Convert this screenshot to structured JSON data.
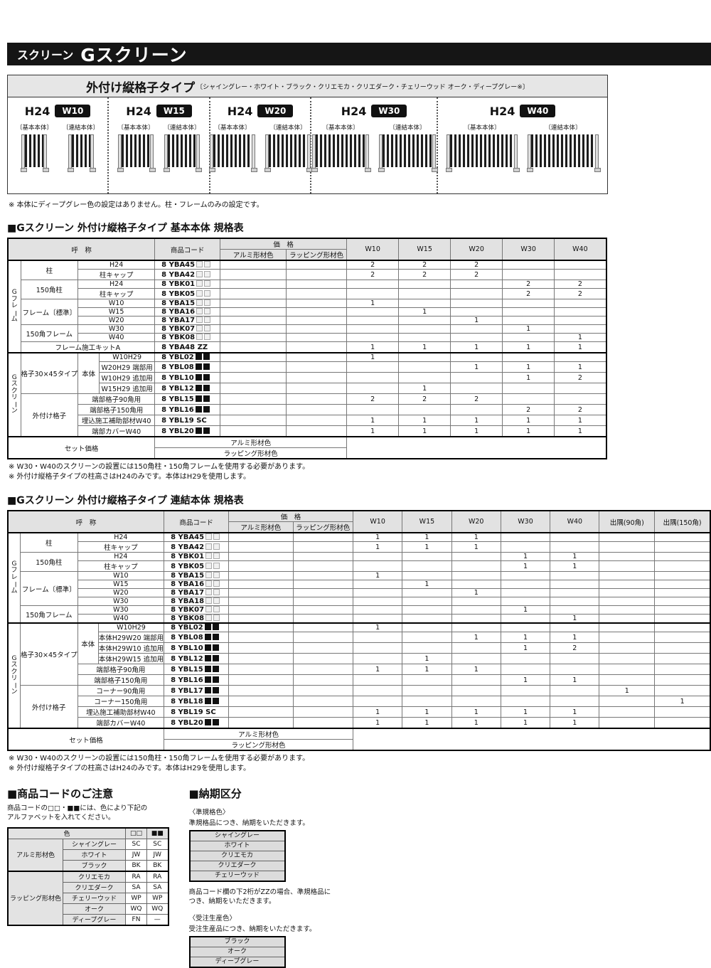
{
  "header": {
    "small": "スクリーン",
    "large": "Gスクリーン"
  },
  "product_box": {
    "title": "外付け縦格子タイプ",
    "subtitle": "〔シャイングレー・ホワイト・ブラック・クリエモカ・クリエダーク・チェリーウッド オーク・ディープグレー※〕",
    "unit_labels": [
      "〔基本本体〕",
      "〔連結本体〕"
    ],
    "panels": [
      {
        "h": "H24",
        "w": "W10"
      },
      {
        "h": "H24",
        "w": "W15"
      },
      {
        "h": "H24",
        "w": "W20"
      },
      {
        "h": "H24",
        "w": "W30"
      },
      {
        "h": "H24",
        "w": "W40"
      }
    ],
    "note": "※ 本体にディープグレー色の設定はありません。柱・フレームのみの設定です。"
  },
  "spec_tables": [
    {
      "title": "■Gスクリーン 外付け縦格子タイプ 基本本体 規格表",
      "headers": {
        "name": "呼　称",
        "code": "商品コード",
        "price": "価　格",
        "price_sub": [
          "アルミ形材色",
          "ラッピング形材色"
        ],
        "cols": [
          "W10",
          "W15",
          "W20",
          "W30",
          "W40"
        ]
      },
      "group1": [
        {
          "cells": [
            {
              "t": "Gフレーム",
              "rs": 10,
              "v": true
            },
            {
              "t": "柱",
              "rs": 2
            },
            {
              "t": "H24",
              "cs": 2
            }
          ],
          "code": "8 YBA45",
          "suffix": "□□",
          "qty": [
            "2",
            "2",
            "2",
            "",
            ""
          ]
        },
        {
          "cells": [
            {
              "t": "柱キャップ",
              "cs": 2
            }
          ],
          "code": "8 YBA42",
          "suffix": "□□",
          "qty": [
            "2",
            "2",
            "2",
            "",
            ""
          ]
        },
        {
          "cells": [
            {
              "t": "150角柱",
              "rs": 2
            },
            {
              "t": "H24",
              "cs": 2
            }
          ],
          "code": "8 YBK01",
          "suffix": "□□",
          "qty": [
            "",
            "",
            "",
            "2",
            "2"
          ]
        },
        {
          "cells": [
            {
              "t": "柱キャップ",
              "cs": 2
            }
          ],
          "code": "8 YBK05",
          "suffix": "□□",
          "qty": [
            "",
            "",
            "",
            "2",
            "2"
          ]
        },
        {
          "cells": [
            {
              "t": "フレーム〔標準〕",
              "rs": 3
            },
            {
              "t": "W10",
              "cs": 2
            }
          ],
          "code": "8 YBA15",
          "suffix": "□□",
          "qty": [
            "1",
            "",
            "",
            "",
            ""
          ]
        },
        {
          "cells": [
            {
              "t": "W15",
              "cs": 2
            }
          ],
          "code": "8 YBA16",
          "suffix": "□□",
          "qty": [
            "",
            "1",
            "",
            "",
            ""
          ]
        },
        {
          "cells": [
            {
              "t": "W20",
              "cs": 2
            }
          ],
          "code": "8 YBA17",
          "suffix": "□□",
          "qty": [
            "",
            "",
            "1",
            "",
            ""
          ]
        },
        {
          "cells": [
            {
              "t": "150角フレーム",
              "rs": 2
            },
            {
              "t": "W30",
              "cs": 2
            }
          ],
          "code": "8 YBK07",
          "suffix": "□□",
          "qty": [
            "",
            "",
            "",
            "1",
            ""
          ]
        },
        {
          "cells": [
            {
              "t": "W40",
              "cs": 2
            }
          ],
          "code": "8 YBK08",
          "suffix": "□□",
          "qty": [
            "",
            "",
            "",
            "",
            "1"
          ]
        },
        {
          "cells": [
            {
              "t": "フレーム施工キットA",
              "cs": 3
            }
          ],
          "code": "8 YBA48 ZZ",
          "suffix": "",
          "qty": [
            "1",
            "1",
            "1",
            "1",
            "1"
          ]
        }
      ],
      "group2": [
        {
          "cells": [
            {
              "t": "Gスクリーン",
              "rs": 8,
              "v": true
            },
            {
              "t": "格子30×45タイプ",
              "rs": 4
            },
            {
              "t": "本体",
              "rs": 4
            },
            {
              "t": "W10H29"
            }
          ],
          "code": "8 YBL02",
          "suffix": "■■",
          "qty": [
            "1",
            "",
            "",
            "",
            ""
          ]
        },
        {
          "cells": [
            {
              "t": "W20H29 端部用"
            }
          ],
          "code": "8 YBL08",
          "suffix": "■■",
          "qty": [
            "",
            "",
            "1",
            "1",
            "1"
          ]
        },
        {
          "cells": [
            {
              "t": "W10H29 追加用"
            }
          ],
          "code": "8 YBL10",
          "suffix": "■■",
          "qty": [
            "",
            "",
            "",
            "1",
            "2"
          ]
        },
        {
          "cells": [
            {
              "t": "W15H29 追加用"
            }
          ],
          "code": "8 YBL12",
          "suffix": "■■",
          "qty": [
            "",
            "1",
            "",
            "",
            ""
          ]
        },
        {
          "cells": [
            {
              "t": "外付け格子",
              "rs": 4
            },
            {
              "t": "端部格子90角用",
              "cs": 2
            }
          ],
          "code": "8 YBL15",
          "suffix": "■■",
          "qty": [
            "2",
            "2",
            "2",
            "",
            ""
          ]
        },
        {
          "cells": [
            {
              "t": "端部格子150角用",
              "cs": 2
            }
          ],
          "code": "8 YBL16",
          "suffix": "■■",
          "qty": [
            "",
            "",
            "",
            "2",
            "2"
          ]
        },
        {
          "cells": [
            {
              "t": "埋込施工補助部材W40",
              "cs": 2
            }
          ],
          "code": "8 YBL19 SC",
          "suffix": "",
          "qty": [
            "1",
            "1",
            "1",
            "1",
            "1"
          ]
        },
        {
          "cells": [
            {
              "t": "端部カバーW40",
              "cs": 2
            }
          ],
          "code": "8 YBL20",
          "suffix": "■■",
          "qty": [
            "1",
            "1",
            "1",
            "1",
            "1"
          ]
        }
      ],
      "set_price": {
        "label": "セット価格",
        "subs": [
          "アルミ形材色",
          "ラッピング形材色"
        ]
      },
      "notes": [
        "※ W30・W40のスクリーンの設置には150角柱・150角フレームを使用する必要があります。",
        "※ 外付け縦格子タイプの柱高さはH24のみです。本体はH29を使用します。"
      ]
    },
    {
      "title": "■Gスクリーン 外付け縦格子タイプ 連結本体 規格表",
      "headers": {
        "name": "呼　称",
        "code": "商品コード",
        "price": "価　格",
        "price_sub": [
          "アルミ形材色",
          "ラッピング形材色"
        ],
        "cols": [
          "W10",
          "W15",
          "W20",
          "W30",
          "W40",
          "出隅(90角)",
          "出隅(150角)"
        ]
      },
      "group1": [
        {
          "cells": [
            {
              "t": "Gフレーム",
              "rs": 10,
              "v": true
            },
            {
              "t": "柱",
              "rs": 2
            },
            {
              "t": "H24",
              "cs": 2
            }
          ],
          "code": "8 YBA45",
          "suffix": "□□",
          "qty": [
            "1",
            "1",
            "1",
            "",
            "",
            "",
            ""
          ]
        },
        {
          "cells": [
            {
              "t": "柱キャップ",
              "cs": 2
            }
          ],
          "code": "8 YBA42",
          "suffix": "□□",
          "qty": [
            "1",
            "1",
            "1",
            "",
            "",
            "",
            ""
          ]
        },
        {
          "cells": [
            {
              "t": "150角柱",
              "rs": 2
            },
            {
              "t": "H24",
              "cs": 2
            }
          ],
          "code": "8 YBK01",
          "suffix": "□□",
          "qty": [
            "",
            "",
            "",
            "1",
            "1",
            "",
            ""
          ]
        },
        {
          "cells": [
            {
              "t": "柱キャップ",
              "cs": 2
            }
          ],
          "code": "8 YBK05",
          "suffix": "□□",
          "qty": [
            "",
            "",
            "",
            "1",
            "1",
            "",
            ""
          ]
        },
        {
          "cells": [
            {
              "t": "フレーム〔標準〕",
              "rs": 4
            },
            {
              "t": "W10",
              "cs": 2
            }
          ],
          "code": "8 YBA15",
          "suffix": "□□",
          "qty": [
            "1",
            "",
            "",
            "",
            "",
            "",
            ""
          ]
        },
        {
          "cells": [
            {
              "t": "W15",
              "cs": 2
            }
          ],
          "code": "8 YBA16",
          "suffix": "□□",
          "qty": [
            "",
            "1",
            "",
            "",
            "",
            "",
            ""
          ]
        },
        {
          "cells": [
            {
              "t": "W20",
              "cs": 2
            }
          ],
          "code": "8 YBA17",
          "suffix": "□□",
          "qty": [
            "",
            "",
            "1",
            "",
            "",
            "",
            ""
          ]
        },
        {
          "cells": [
            {
              "t": "W30",
              "cs": 2
            }
          ],
          "code": "8 YBA18",
          "suffix": "□□",
          "qty": [
            "",
            "",
            "",
            "",
            "",
            "",
            ""
          ]
        },
        {
          "cells": [
            {
              "t": "150角フレーム",
              "rs": 2
            },
            {
              "t": "W30",
              "cs": 2
            }
          ],
          "code": "8 YBK07",
          "suffix": "□□",
          "qty": [
            "",
            "",
            "",
            "1",
            "",
            "",
            ""
          ]
        },
        {
          "cells": [
            {
              "t": "W40",
              "cs": 2
            }
          ],
          "code": "8 YBK08",
          "suffix": "□□",
          "qty": [
            "",
            "",
            "",
            "",
            "1",
            "",
            ""
          ]
        }
      ],
      "group2": [
        {
          "cells": [
            {
              "t": "Gスクリーン",
              "rs": 10,
              "v": true
            },
            {
              "t": "格子30×45タイプ",
              "rs": 6
            },
            {
              "t": "本体",
              "rs": 4
            },
            {
              "t": "W10H29"
            }
          ],
          "code": "8 YBL02",
          "suffix": "■■",
          "qty": [
            "1",
            "",
            "",
            "",
            "",
            "",
            ""
          ]
        },
        {
          "cells": [
            {
              "t": "本体H29W20 端部用"
            }
          ],
          "code": "8 YBL08",
          "suffix": "■■",
          "qty": [
            "",
            "",
            "1",
            "1",
            "1",
            "",
            ""
          ]
        },
        {
          "cells": [
            {
              "t": "本体H29W10 追加用"
            }
          ],
          "code": "8 YBL10",
          "suffix": "■■",
          "qty": [
            "",
            "",
            "",
            "1",
            "2",
            "",
            ""
          ]
        },
        {
          "cells": [
            {
              "t": "本体H29W15 追加用"
            }
          ],
          "code": "8 YBL12",
          "suffix": "■■",
          "qty": [
            "",
            "1",
            "",
            "",
            "",
            "",
            ""
          ]
        },
        {
          "cells": [
            {
              "t": "端部格子90角用",
              "cs": 2
            }
          ],
          "code": "8 YBL15",
          "suffix": "■■",
          "qty": [
            "1",
            "1",
            "1",
            "",
            "",
            "",
            ""
          ]
        },
        {
          "cells": [
            {
              "t": "端部格子150角用",
              "cs": 2
            }
          ],
          "code": "8 YBL16",
          "suffix": "■■",
          "qty": [
            "",
            "",
            "",
            "1",
            "1",
            "",
            ""
          ]
        },
        {
          "cells": [
            {
              "t": "外付け格子",
              "rs": 4
            },
            {
              "t": "コーナー90角用",
              "cs": 2
            }
          ],
          "code": "8 YBL17",
          "suffix": "■■",
          "qty": [
            "",
            "",
            "",
            "",
            "",
            "1",
            ""
          ]
        },
        {
          "cells": [
            {
              "t": "コーナー150角用",
              "cs": 2
            }
          ],
          "code": "8 YBL18",
          "suffix": "■■",
          "qty": [
            "",
            "",
            "",
            "",
            "",
            "",
            "1"
          ]
        },
        {
          "cells": [
            {
              "t": "埋込施工補助部材W40",
              "cs": 2
            }
          ],
          "code": "8 YBL19 SC",
          "suffix": "",
          "qty": [
            "1",
            "1",
            "1",
            "1",
            "1",
            "",
            ""
          ]
        },
        {
          "cells": [
            {
              "t": "端部カバーW40",
              "cs": 2
            }
          ],
          "code": "8 YBL20",
          "suffix": "■■",
          "qty": [
            "1",
            "1",
            "1",
            "1",
            "1",
            "",
            ""
          ]
        }
      ],
      "set_price": {
        "label": "セット価格",
        "subs": [
          "アルミ形材色",
          "ラッピング形材色"
        ]
      },
      "notes": [
        "※ W30・W40のスクリーンの設置には150角柱・150角フレームを使用する必要があります。",
        "※ 外付け縦格子タイプの柱高さはH24のみです。本体はH29を使用します。"
      ]
    }
  ],
  "notice": {
    "title": "■商品コードのご注意",
    "desc": "商品コードの□□・■■には、色により下記のアルファベットを入れてください。",
    "table": {
      "header": [
        "色",
        "□□",
        "■■"
      ],
      "groups": [
        {
          "label": "アルミ形材色",
          "rows": [
            [
              "シャイングレー",
              "SC",
              "SC"
            ],
            [
              "ホワイト",
              "JW",
              "JW"
            ],
            [
              "ブラック",
              "BK",
              "BK"
            ]
          ]
        },
        {
          "label": "ラッピング形材色",
          "rows": [
            [
              "クリエモカ",
              "RA",
              "RA"
            ],
            [
              "クリエダーク",
              "SA",
              "SA"
            ],
            [
              "チェリーウッド",
              "WP",
              "WP"
            ],
            [
              "オーク",
              "WQ",
              "WQ"
            ],
            [
              "ディープグレー",
              "FN",
              "—"
            ]
          ]
        }
      ]
    }
  },
  "delivery": {
    "title": "■納期区分",
    "std_head": "〈準規格色〉",
    "std_desc": "準規格品につき、納期をいただきます。",
    "std_colors": [
      "シャイングレー",
      "ホワイト",
      "クリエモカ",
      "クリエダーク",
      "チェリーウッド"
    ],
    "zz_note": "商品コード欄の下2桁がZZの場合、準規格品につき、納期をいただきます。",
    "order_head": "〈受注生産色〉",
    "order_desc": "受注生産品につき、納期をいただきます。",
    "order_colors": [
      "ブラック",
      "オーク",
      "ディープグレー"
    ]
  },
  "colors": {
    "bar_bg": "#151515",
    "header_bg": "#e2e2e2",
    "badge_bg": "#111111"
  }
}
